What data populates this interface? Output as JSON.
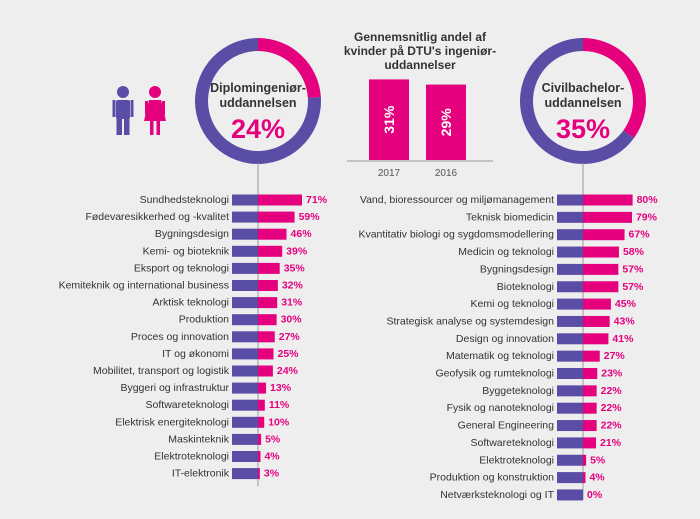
{
  "colors": {
    "women": "#e5007e",
    "men": "#5a4da6",
    "text": "#333333",
    "axis": "#9a9a9a",
    "bg": "#eeeeef"
  },
  "icons": [
    "man-icon",
    "woman-icon"
  ],
  "chart_data": [
    {
      "type": "pie",
      "label_line1": "Diplomingeniør-",
      "label_line2": "uddannelsen",
      "value_label": "24%",
      "values": [
        24,
        76
      ]
    },
    {
      "type": "pie",
      "label_line1": "Civilbachelor-",
      "label_line2": "uddannelsen",
      "value_label": "35%",
      "values": [
        35,
        65
      ]
    },
    {
      "type": "bar",
      "title_lines": [
        "Gennemsnitlig andel af",
        "kvinder på DTU's ingeniør-",
        "uddannelser"
      ],
      "categories": [
        "2017",
        "2016"
      ],
      "values": [
        31,
        29
      ],
      "value_labels": [
        "31%",
        "29%"
      ]
    },
    {
      "type": "bar",
      "categories": [
        "Sundhedsteknologi",
        "Fødevaresikkerhed og -kvalitet",
        "Bygningsdesign",
        "Kemi- og bioteknik",
        "Eksport og teknologi",
        "Kemiteknik og international business",
        "Arktisk teknologi",
        "Produktion",
        "Proces og innovation",
        "IT og økonomi",
        "Mobilitet, transport og logistik",
        "Byggeri og infrastruktur",
        "Softwareteknologi",
        "Elektrisk energiteknologi",
        "Maskinteknik",
        "Elektroteknologi",
        "IT-elektronik"
      ],
      "values": [
        71,
        59,
        46,
        39,
        35,
        32,
        31,
        30,
        27,
        25,
        24,
        13,
        11,
        10,
        5,
        4,
        3
      ],
      "value_labels": [
        "71%",
        "59%",
        "46%",
        "39%",
        "35%",
        "32%",
        "31%",
        "30%",
        "27%",
        "25%",
        "24%",
        "13%",
        "11%",
        "10%",
        "5%",
        "4%",
        "3%"
      ]
    },
    {
      "type": "bar",
      "categories": [
        "Vand, bioressourcer og miljømanagement",
        "Teknisk biomedicin",
        "Kvantitativ biologi og sygdomsmodellering",
        "Medicin og teknologi",
        "Bygningsdesign",
        "Bioteknologi",
        "Kemi og teknologi",
        "Strategisk analyse og systemdesign",
        "Design og innovation",
        "Matematik og teknologi",
        "Geofysik og rumteknologi",
        "Byggeteknologi",
        "Fysik og nanoteknologi",
        "General Engineering",
        "Softwareteknologi",
        "Elektroteknologi",
        "Produktion og konstruktion",
        "Netværksteknologi og IT"
      ],
      "values": [
        80,
        79,
        67,
        58,
        57,
        57,
        45,
        43,
        41,
        27,
        23,
        22,
        22,
        22,
        21,
        5,
        4,
        0
      ],
      "value_labels": [
        "80%",
        "79%",
        "67%",
        "58%",
        "57%",
        "57%",
        "45%",
        "43%",
        "41%",
        "27%",
        "23%",
        "22%",
        "22%",
        "22%",
        "21%",
        "5%",
        "4%",
        "0%"
      ]
    }
  ]
}
